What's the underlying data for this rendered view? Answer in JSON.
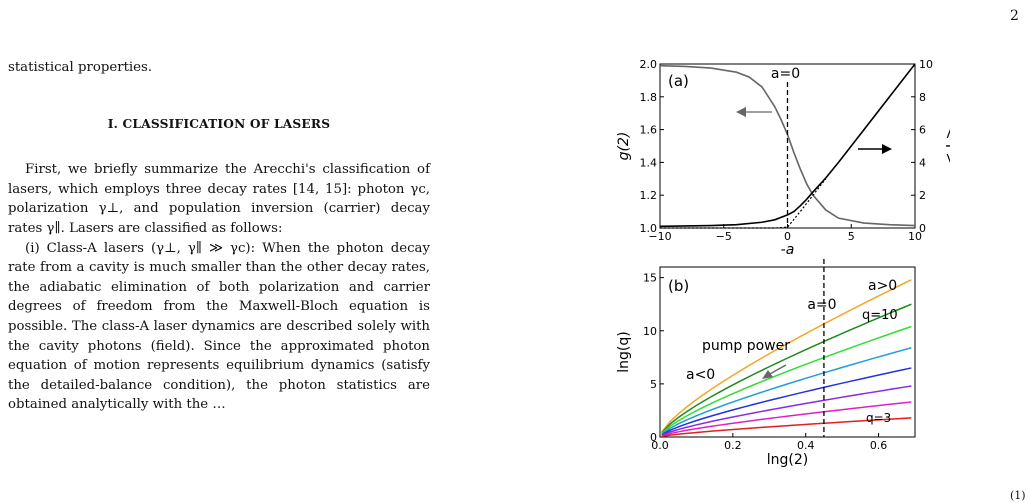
{
  "page_number": "2",
  "left_column": {
    "first_line": "statistical properties.",
    "section_heading": "I. CLASSIFICATION OF LASERS",
    "paragraph1": "First, we briefly summarize the Arecchi's classification of lasers, which employs three decay rates [14, 15]: photon γc, polarization γ⊥, and population inversion (carrier) decay rates γ∥. Lasers are classified as follows:",
    "paragraph2": "(i) Class-A lasers (γ⊥, γ∥ ≫ γc): When the photon decay rate from a cavity is much smaller than the other decay rates, the adiabatic elimination of both polarization and carrier degrees of freedom from the Maxwell-Bloch equation is possible. The class-A laser dynamics are described solely with the cavity photons (field). Since the approximated photon equation of motion represents equilibrium dynamics (satisfy the detailed-balance condition), the photon statistics are obtained analytically with the …"
  },
  "equation_number": "(1)",
  "chart_data": [
    {
      "panel": "(a)",
      "type": "line",
      "xlabel": "-a",
      "ylabel_left": "g(2)",
      "ylabel_right": "< I >",
      "xlim": [
        -10,
        10
      ],
      "ylim_left": [
        1.0,
        2.0
      ],
      "ylim_right": [
        0,
        10
      ],
      "xticks": [
        "−10",
        "−5",
        "0",
        "5",
        "10"
      ],
      "yticks_left": [
        "1.0",
        "1.2",
        "1.4",
        "1.6",
        "1.8",
        "2.0"
      ],
      "yticks_right": [
        "0",
        "2",
        "4",
        "6",
        "8",
        "10"
      ],
      "annotation": "a=0",
      "series": [
        {
          "axis": "left",
          "color": "#666666",
          "style": "solid",
          "x": [
            -10,
            -8,
            -6,
            -4,
            -3,
            -2,
            -1,
            -0.5,
            0,
            0.5,
            1,
            1.5,
            2,
            3,
            4,
            6,
            8,
            10
          ],
          "y": [
            1.99,
            1.985,
            1.975,
            1.95,
            1.92,
            1.86,
            1.74,
            1.66,
            1.57,
            1.46,
            1.36,
            1.27,
            1.2,
            1.11,
            1.06,
            1.03,
            1.02,
            1.015
          ]
        },
        {
          "axis": "right",
          "color": "#000000",
          "style": "solid",
          "x": [
            -10,
            -6,
            -4,
            -2,
            -1,
            0,
            0.5,
            1,
            1.5,
            2,
            3,
            4,
            6,
            8,
            10
          ],
          "y": [
            0.1,
            0.15,
            0.2,
            0.35,
            0.5,
            0.8,
            1.0,
            1.35,
            1.75,
            2.2,
            3.05,
            4.0,
            6.0,
            8.0,
            10.0
          ]
        },
        {
          "axis": "right",
          "color": "#000000",
          "style": "dotted",
          "x": [
            -10,
            -6,
            -4,
            -2,
            -1,
            0,
            1,
            2,
            3
          ],
          "y": [
            0.0,
            0.0,
            0.0,
            0.0,
            0.0,
            0.05,
            1.0,
            2.0,
            3.0
          ]
        }
      ]
    },
    {
      "panel": "(b)",
      "type": "line",
      "xlabel": "lng(2)",
      "ylabel": "lng(q)",
      "xlim": [
        0.0,
        0.7
      ],
      "ylim": [
        0,
        16
      ],
      "xticks": [
        "0.0",
        "0.2",
        "0.4",
        "0.6"
      ],
      "yticks": [
        "0",
        "5",
        "10",
        "15"
      ],
      "vline_x": 0.45,
      "annotations": {
        "a0": "a=0",
        "agt": "a>0",
        "alt": "a<0",
        "pump": "pump power",
        "q10": "q=10",
        "q3": "q=3"
      },
      "series": [
        {
          "q": 10,
          "color": "#f5a623",
          "end": 14.8
        },
        {
          "q": 9,
          "color": "#1e8a1e",
          "end": 12.5
        },
        {
          "q": 8,
          "color": "#33dd33",
          "end": 10.4
        },
        {
          "q": 7,
          "color": "#1f9ed8",
          "end": 8.4
        },
        {
          "q": 6,
          "color": "#2233dd",
          "end": 6.5
        },
        {
          "q": 5,
          "color": "#8a2be2",
          "end": 4.8
        },
        {
          "q": 4,
          "color": "#e021c0",
          "end": 3.3
        },
        {
          "q": 3,
          "color": "#e02020",
          "end": 1.8
        }
      ]
    }
  ]
}
